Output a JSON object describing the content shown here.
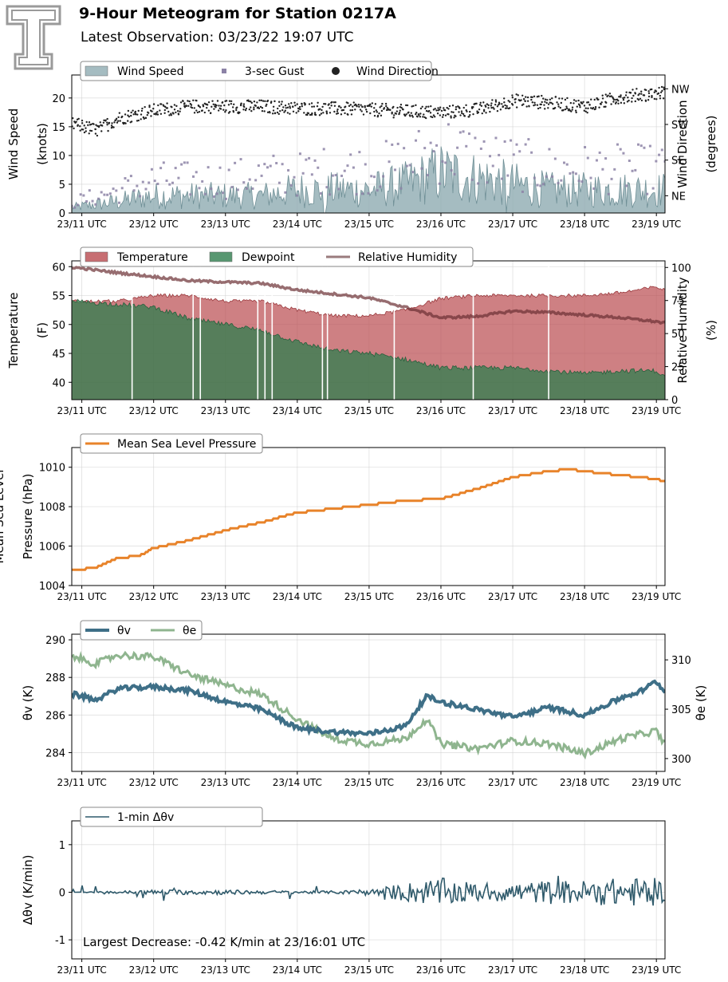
{
  "header": {
    "title": "9-Hour Meteogram for Station 0217A",
    "subtitle": "Latest Observation: 03/23/22 19:07 UTC"
  },
  "colors": {
    "wind_speed": "#8fabb1",
    "gust": "#8c82a6",
    "direction": "#222222",
    "temperature": "#b94a4f",
    "dewpoint": "#2e7d4e",
    "rh": "#6b2f33",
    "pressure": "#e8832a",
    "theta_v": "#3e6f87",
    "theta_e": "#8fb58f",
    "dtheta": "#2f5a6b",
    "annotation": "#2f5a6b"
  },
  "x_ticks": [
    "23/11 UTC",
    "23/12 UTC",
    "23/13 UTC",
    "23/14 UTC",
    "23/15 UTC",
    "23/16 UTC",
    "23/17 UTC",
    "23/18 UTC",
    "23/19 UTC"
  ],
  "chart_data": [
    {
      "type": "area",
      "legend": [
        "Wind Speed",
        "3-sec Gust",
        "Wind Direction"
      ],
      "ylabel": [
        "Wind Speed",
        "(knots)"
      ],
      "ylabel_right": [
        "Wind Direction",
        "(degrees)"
      ],
      "ylim": [
        0,
        24
      ],
      "yticks": [
        0,
        5,
        10,
        15,
        20
      ],
      "right_ticks": [
        "NE",
        "SE",
        "SW",
        "NW"
      ],
      "series": [
        {
          "name": "Wind Speed",
          "x": [
            10.9,
            11.5,
            12.0,
            12.5,
            13.0,
            13.5,
            14.0,
            14.5,
            15.0,
            15.5,
            16.0,
            16.5,
            17.0,
            17.5,
            18.0,
            18.5,
            19.1
          ],
          "y": [
            1,
            2,
            3,
            3,
            3,
            3,
            4,
            4,
            4,
            5,
            7,
            6,
            5,
            4,
            4,
            4,
            4
          ]
        },
        {
          "name": "3-sec Gust",
          "x": [
            10.9,
            11.5,
            12.0,
            12.5,
            13.0,
            13.5,
            14.0,
            14.5,
            15.0,
            15.5,
            16.0,
            16.5,
            17.0,
            17.5,
            18.0,
            18.5,
            19.1
          ],
          "y": [
            2,
            4,
            6,
            6,
            6,
            7,
            7,
            8,
            8,
            9,
            12,
            10,
            9,
            8,
            8,
            8,
            8
          ]
        },
        {
          "name": "Wind Direction",
          "x": [
            10.9,
            11.2,
            11.5,
            12.0,
            12.5,
            13.0,
            13.5,
            14.0,
            14.5,
            15.0,
            15.5,
            16.0,
            16.5,
            17.0,
            17.5,
            18.0,
            18.5,
            19.1
          ],
          "y": [
            225,
            210,
            240,
            260,
            270,
            270,
            270,
            265,
            265,
            262,
            258,
            255,
            262,
            285,
            280,
            270,
            295,
            305
          ]
        }
      ]
    },
    {
      "type": "area",
      "legend": [
        "Temperature",
        "Dewpoint",
        "Relative Humidity"
      ],
      "ylabel": [
        "Temperature",
        "(F)"
      ],
      "ylabel_right": [
        "Relative Humidity",
        "(%)"
      ],
      "ylim": [
        37,
        61
      ],
      "yticks": [
        40,
        45,
        50,
        55,
        60
      ],
      "right_ticks": [
        0,
        25,
        50,
        75,
        100
      ],
      "series": [
        {
          "name": "Temperature",
          "x": [
            10.9,
            11.5,
            12.0,
            12.5,
            13.0,
            13.5,
            14.0,
            14.5,
            15.0,
            15.5,
            16.0,
            16.5,
            17.0,
            17.5,
            18.0,
            18.5,
            19.0,
            19.1
          ],
          "y": [
            54,
            54,
            55,
            55,
            54,
            54,
            52.5,
            51.5,
            51.5,
            52.5,
            54.5,
            55,
            55,
            55,
            55,
            55.5,
            56.5,
            56
          ]
        },
        {
          "name": "Dewpoint",
          "x": [
            10.9,
            11.5,
            12.0,
            12.5,
            13.0,
            13.5,
            14.0,
            14.5,
            15.0,
            15.5,
            16.0,
            16.5,
            17.0,
            17.5,
            18.0,
            18.5,
            19.0,
            19.1
          ],
          "y": [
            54,
            53.5,
            53,
            51,
            50,
            49,
            47,
            45.5,
            45,
            44,
            42.5,
            42.5,
            42.5,
            42,
            41.5,
            42,
            42,
            41
          ]
        },
        {
          "name": "Relative Humidity",
          "x": [
            10.9,
            11.5,
            12.0,
            12.5,
            13.0,
            13.5,
            14.0,
            14.5,
            15.0,
            15.5,
            16.0,
            16.5,
            17.0,
            17.5,
            18.0,
            18.5,
            19.0,
            19.1
          ],
          "y": [
            100,
            96,
            93,
            90,
            89,
            88,
            83,
            80,
            77,
            70,
            62,
            63,
            67,
            66,
            64,
            62,
            59,
            58
          ]
        }
      ]
    },
    {
      "type": "line",
      "legend": [
        "Mean Sea Level Pressure"
      ],
      "ylabel": [
        "Mean Sea Level",
        "Pressure (hPa)"
      ],
      "ylim": [
        1004,
        1011
      ],
      "yticks": [
        1004,
        1006,
        1008,
        1010
      ],
      "series": [
        {
          "name": "Mean Sea Level Pressure",
          "x": [
            10.9,
            11.2,
            11.5,
            11.8,
            12.0,
            12.5,
            13.0,
            13.5,
            14.0,
            14.5,
            15.0,
            15.5,
            16.0,
            16.5,
            17.0,
            17.5,
            17.8,
            18.0,
            18.5,
            19.0,
            19.1
          ],
          "y": [
            1004.8,
            1004.9,
            1005.4,
            1005.5,
            1005.9,
            1006.3,
            1006.8,
            1007.2,
            1007.7,
            1007.9,
            1008.1,
            1008.3,
            1008.4,
            1008.9,
            1009.5,
            1009.8,
            1009.9,
            1009.8,
            1009.6,
            1009.4,
            1009.3
          ]
        }
      ]
    },
    {
      "type": "line",
      "legend": [
        "θv",
        "θe"
      ],
      "ylabel": [
        "θv (K)"
      ],
      "ylabel_right": [
        "θe (K)"
      ],
      "ylim": [
        283,
        290.3
      ],
      "yticks": [
        284,
        286,
        288,
        290
      ],
      "right_ticks": [
        300,
        305,
        310
      ],
      "right_ylim": [
        298.7,
        312.6
      ],
      "series": [
        {
          "name": "θv",
          "x": [
            10.9,
            11.2,
            11.5,
            12.0,
            12.5,
            13.0,
            13.5,
            14.0,
            14.5,
            15.0,
            15.5,
            15.8,
            16.0,
            16.5,
            17.0,
            17.5,
            18.0,
            18.5,
            18.8,
            19.0,
            19.1
          ],
          "y": [
            287.1,
            286.8,
            287.4,
            287.5,
            287.3,
            286.7,
            286.3,
            285.3,
            285.1,
            285.0,
            285.4,
            287.0,
            286.7,
            286.3,
            285.9,
            286.4,
            286.0,
            286.9,
            287.3,
            287.8,
            287.3
          ]
        },
        {
          "name": "θe",
          "x": [
            10.9,
            11.2,
            11.5,
            12.0,
            12.5,
            13.0,
            13.5,
            14.0,
            14.5,
            15.0,
            15.5,
            15.8,
            16.0,
            16.5,
            17.0,
            17.5,
            18.0,
            18.5,
            18.8,
            19.0,
            19.1
          ],
          "y": [
            310.3,
            309.6,
            310.5,
            310.3,
            308.5,
            307.4,
            306.5,
            304.0,
            302.0,
            301.5,
            302.0,
            304.0,
            301.5,
            301.0,
            301.8,
            301.5,
            300.5,
            302.0,
            302.5,
            302.8,
            301.5
          ]
        }
      ]
    },
    {
      "type": "line",
      "legend": [
        "1-min Δθv"
      ],
      "ylabel": [
        "Δθv (K/min)"
      ],
      "ylim": [
        -1.4,
        1.5
      ],
      "yticks": [
        -1,
        0,
        1
      ],
      "annotation": "Largest Decrease: -0.42 K/min at 23/16:01 UTC",
      "series": [
        {
          "name": "1-min Δθv",
          "x": [
            10.9,
            12.0,
            13.0,
            14.0,
            14.5,
            15.0,
            15.5,
            16.0,
            16.5,
            17.0,
            17.5,
            18.0,
            18.5,
            19.0,
            19.1
          ],
          "y": [
            0,
            0.05,
            -0.05,
            0.03,
            -0.03,
            0.05,
            0.2,
            -0.3,
            0.2,
            -0.2,
            0.25,
            -0.25,
            0.3,
            -0.3,
            0.2
          ]
        }
      ]
    }
  ]
}
